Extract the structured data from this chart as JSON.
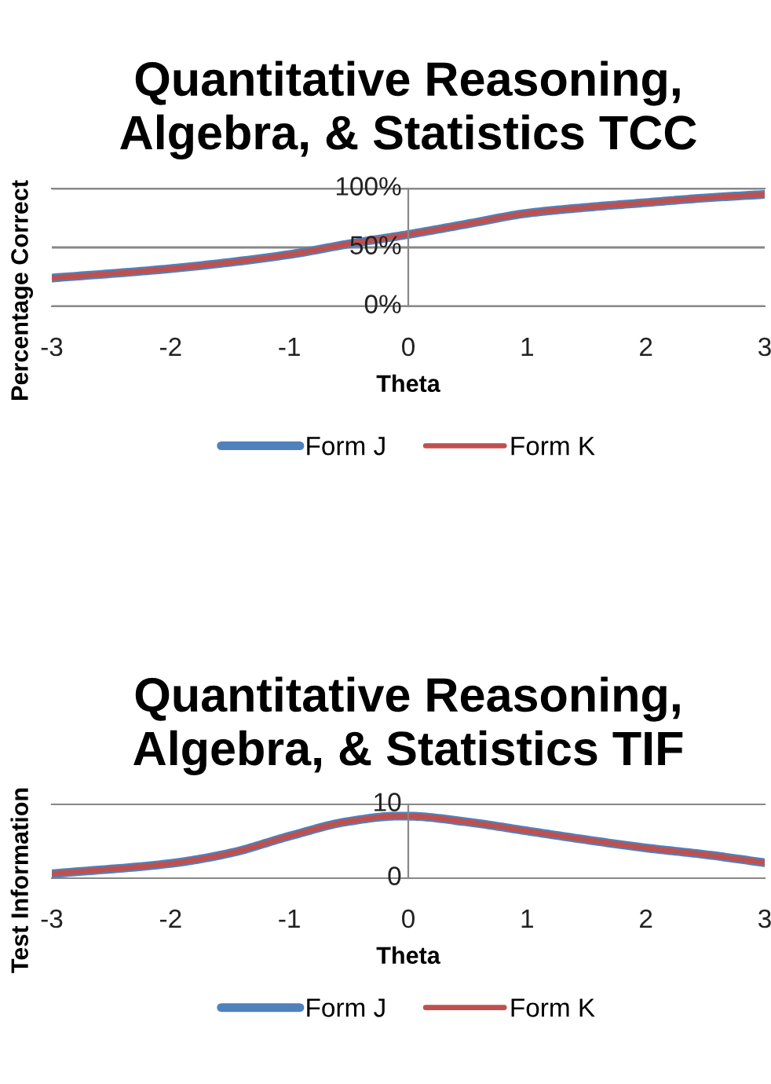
{
  "chart_data": [
    {
      "type": "line",
      "title": "Quantitative Reasoning,\nAlgebra, & Statistics TCC",
      "xlabel": "Theta",
      "ylabel": "Percentage Correct",
      "x": [
        -3,
        -2,
        -1,
        -0.5,
        0,
        0.5,
        1,
        1.5,
        2,
        2.5,
        3
      ],
      "series": [
        {
          "name": "Form J",
          "color": "#4f81bd",
          "values": [
            24,
            32,
            44,
            53,
            61,
            70,
            79,
            84,
            88,
            92,
            95
          ]
        },
        {
          "name": "Form K",
          "color": "#c0504d",
          "values": [
            24,
            32,
            44,
            53,
            61,
            70,
            79,
            84,
            88,
            92,
            95
          ]
        }
      ],
      "xlim": [
        -3,
        3
      ],
      "xticks": [
        -3,
        -2,
        -1,
        0,
        1,
        2,
        3
      ],
      "ylim": [
        0,
        100
      ],
      "yticks": [
        {
          "value": 0,
          "label": "0%"
        },
        {
          "value": 50,
          "label": "50%"
        },
        {
          "value": 100,
          "label": "100%"
        }
      ],
      "grid": "y",
      "legend": "bottom"
    },
    {
      "type": "line",
      "title": "Quantitative Reasoning,\nAlgebra, & Statistics TIF",
      "xlabel": "Theta",
      "ylabel": "Test Information",
      "x": [
        -3,
        -2,
        -1.5,
        -1,
        -0.5,
        -0.1,
        0,
        0.5,
        1,
        1.5,
        2,
        2.5,
        3
      ],
      "series": [
        {
          "name": "Form J",
          "color": "#4f81bd",
          "values": [
            0.6,
            2.0,
            3.4,
            5.7,
            7.7,
            8.4,
            8.4,
            7.6,
            6.4,
            5.2,
            4.1,
            3.2,
            2.1
          ]
        },
        {
          "name": "Form K",
          "color": "#c0504d",
          "values": [
            0.6,
            2.0,
            3.4,
            5.7,
            7.7,
            8.4,
            8.4,
            7.6,
            6.4,
            5.2,
            4.1,
            3.2,
            2.1
          ]
        }
      ],
      "xlim": [
        -3,
        3
      ],
      "xticks": [
        -3,
        -2,
        -1,
        0,
        1,
        2,
        3
      ],
      "ylim": [
        0,
        10
      ],
      "yticks": [
        0,
        10
      ],
      "legend": "bottom"
    }
  ]
}
